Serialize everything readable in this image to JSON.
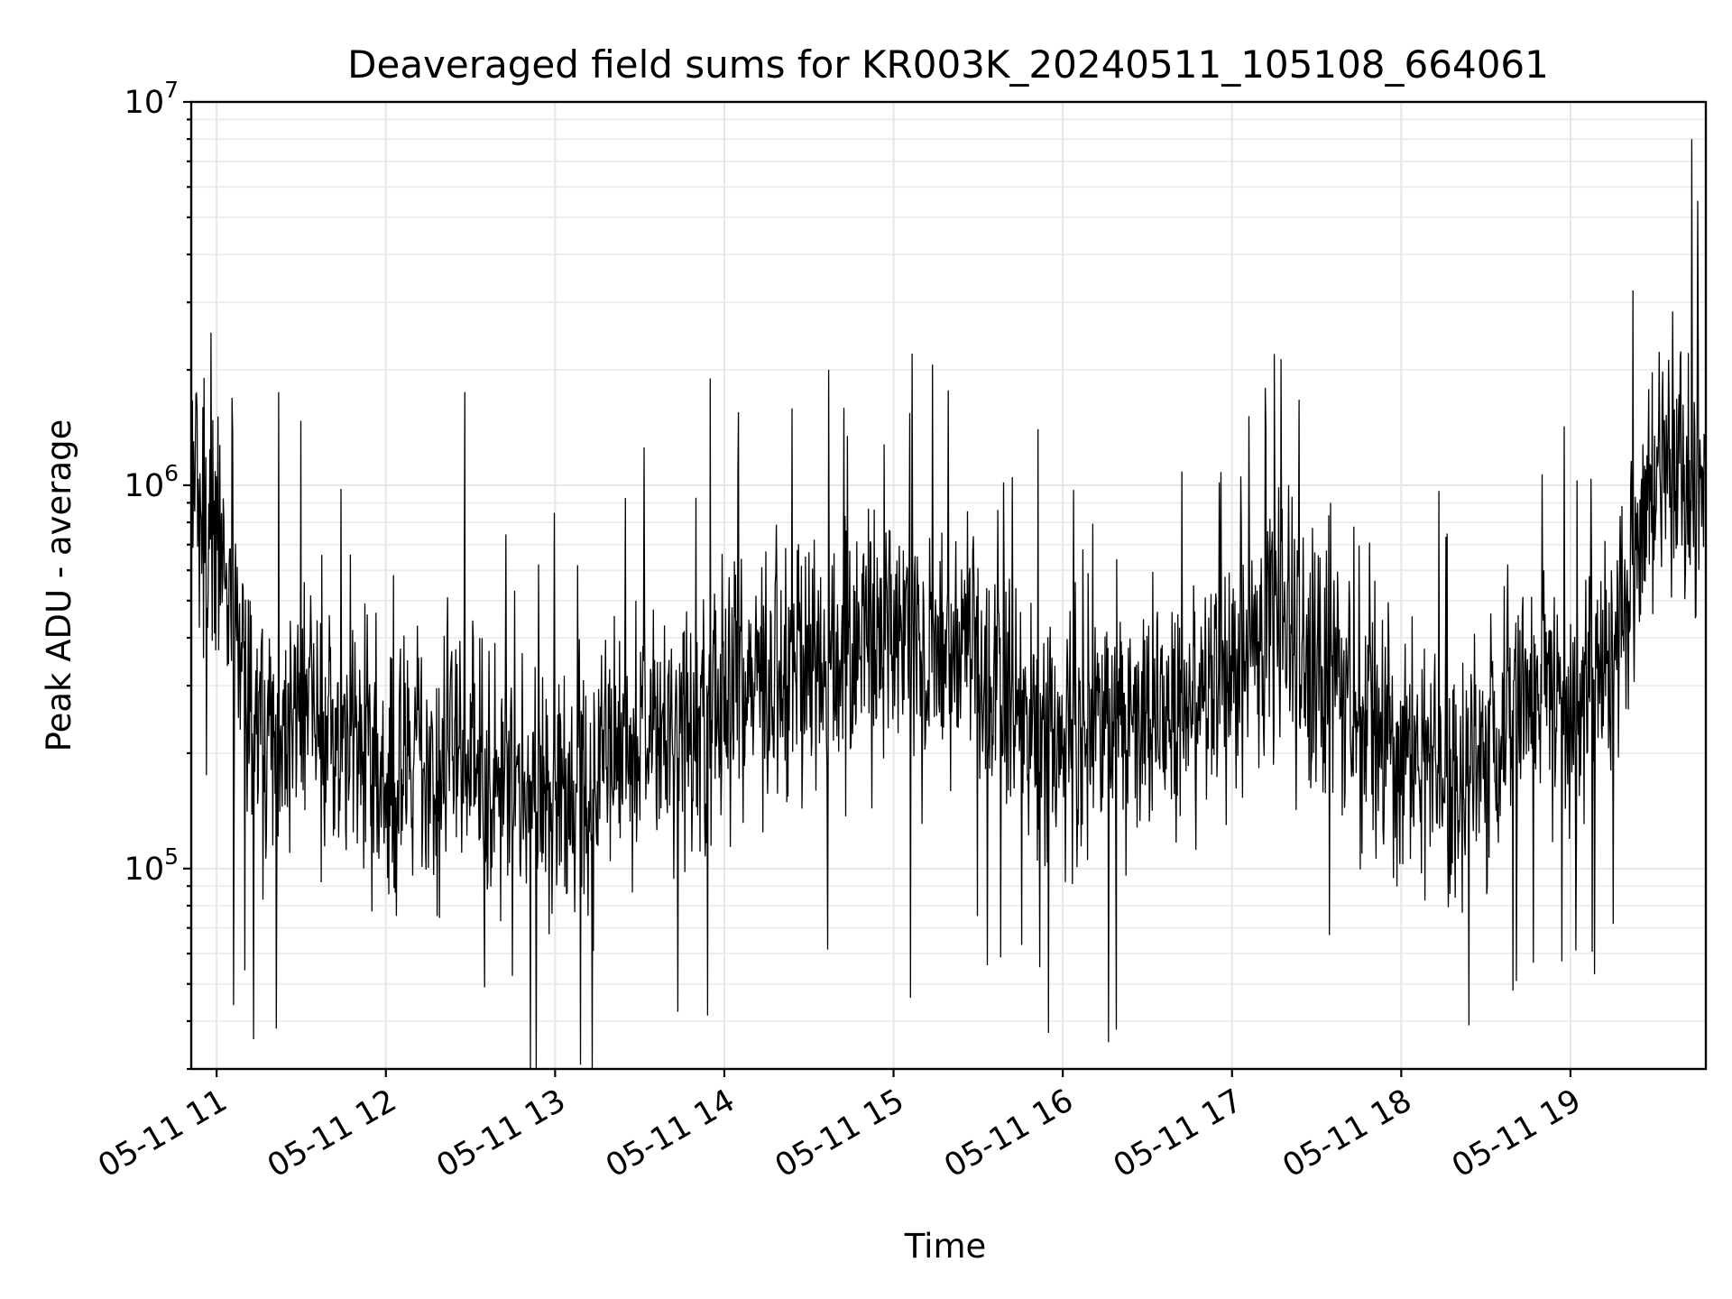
{
  "chart_data": {
    "type": "line",
    "title": "Deaveraged field sums for KR003K_20240511_105108_664061",
    "xlabel": "Time",
    "ylabel": "Peak ADU - average",
    "yscale": "log",
    "ylim": [
      30000,
      10000000
    ],
    "xlim": [
      "2024-05-11 10:51",
      "2024-05-11 19:48"
    ],
    "grid": true,
    "x_tick_labels": [
      "05-11 11",
      "05-11 12",
      "05-11 13",
      "05-11 14",
      "05-11 15",
      "05-11 16",
      "05-11 17",
      "05-11 18",
      "05-11 19"
    ],
    "y_tick_labels": [
      {
        "base": "10",
        "exp": "5",
        "value": 100000
      },
      {
        "base": "10",
        "exp": "6",
        "value": 1000000
      },
      {
        "base": "10",
        "exp": "7",
        "value": 10000000
      }
    ],
    "series": [
      {
        "color": "#000000",
        "x": [
          "2024-05-11 10:51",
          "2024-05-11 11:00",
          "2024-05-11 11:15",
          "2024-05-11 11:30",
          "2024-05-11 11:45",
          "2024-05-11 12:00",
          "2024-05-11 12:15",
          "2024-05-11 12:30",
          "2024-05-11 12:45",
          "2024-05-11 13:00",
          "2024-05-11 13:15",
          "2024-05-11 13:30",
          "2024-05-11 13:45",
          "2024-05-11 14:00",
          "2024-05-11 14:15",
          "2024-05-11 14:30",
          "2024-05-11 14:45",
          "2024-05-11 15:00",
          "2024-05-11 15:15",
          "2024-05-11 15:30",
          "2024-05-11 15:45",
          "2024-05-11 16:00",
          "2024-05-11 16:15",
          "2024-05-11 16:30",
          "2024-05-11 16:45",
          "2024-05-11 17:00",
          "2024-05-11 17:15",
          "2024-05-11 17:30",
          "2024-05-11 17:45",
          "2024-05-11 18:00",
          "2024-05-11 18:15",
          "2024-05-11 18:30",
          "2024-05-11 18:45",
          "2024-05-11 19:00",
          "2024-05-11 19:15",
          "2024-05-11 19:30",
          "2024-05-11 19:45"
        ],
        "y": [
          900000,
          700000,
          180000,
          250000,
          220000,
          150000,
          180000,
          170000,
          140000,
          130000,
          170000,
          200000,
          220000,
          250000,
          280000,
          300000,
          320000,
          350000,
          330000,
          300000,
          250000,
          200000,
          210000,
          230000,
          220000,
          300000,
          400000,
          300000,
          230000,
          180000,
          150000,
          170000,
          250000,
          250000,
          350000,
          900000,
          900000
        ],
        "line_width": 1,
        "noise_band_low_factor": 0.35,
        "noise_band_high_factor": 3.5,
        "peaks": [
          {
            "x": "2024-05-11 19:43",
            "y": 8000000
          },
          {
            "x": "2024-05-11 10:58",
            "y": 2500000
          },
          {
            "x": "2024-05-11 17:15",
            "y": 2200000
          },
          {
            "x": "2024-05-11 14:37",
            "y": 2000000
          },
          {
            "x": "2024-05-11 13:55",
            "y": 1900000
          },
          {
            "x": "2024-05-11 12:28",
            "y": 1750000
          },
          {
            "x": "2024-05-11 11:22",
            "y": 1750000
          }
        ],
        "troughs": [
          {
            "x": "2024-05-11 16:19",
            "y": 38000
          },
          {
            "x": "2024-05-11 18:24",
            "y": 39000
          },
          {
            "x": "2024-05-11 11:06",
            "y": 44000
          },
          {
            "x": "2024-05-11 15:06",
            "y": 46000
          },
          {
            "x": "2024-05-11 12:35",
            "y": 49000
          }
        ]
      }
    ]
  }
}
